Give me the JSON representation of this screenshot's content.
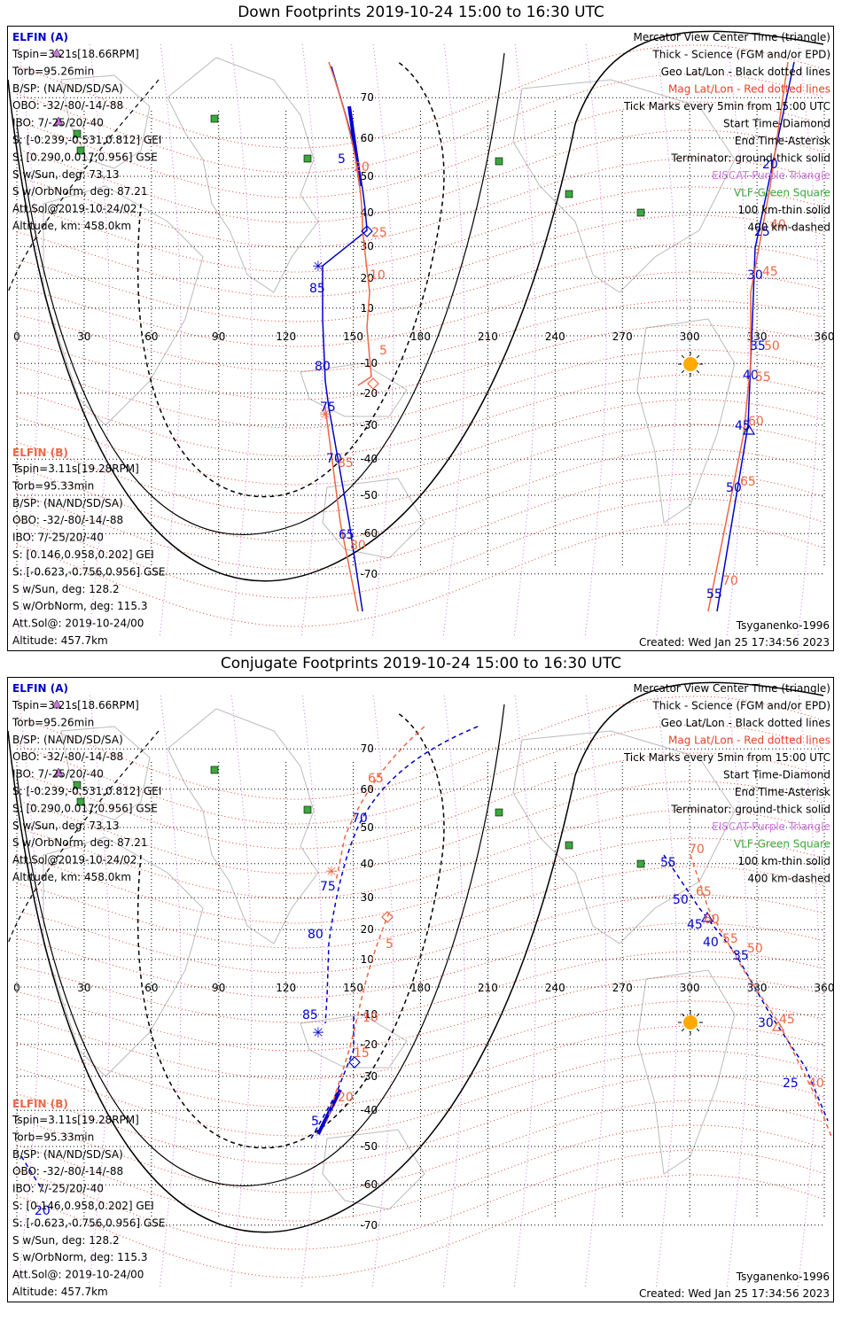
{
  "panels": [
    {
      "title": "Down Footprints 2019-10-24 15:00 to 16:30 UTC",
      "elfin_a": {
        "header": "ELFIN (A)",
        "lines": [
          "Tspin=3.21s[18.66RPM]",
          "Torb=95.26min",
          "B/SP: (NA/ND/SD/SA)",
          "OBO: -32/-80/-14/-88",
          "IBO: 7/-25/20/-40",
          "S: [-0.239,-0.531,0.812] GEI",
          "S: [0.290,0.017,0.956] GSE",
          "S w/Sun, deg: 73.13",
          "S w/OrbNorm, deg: 87.21",
          "Att.Sol@2019-10-24/02",
          "Altitude, km: 458.0km"
        ]
      },
      "elfin_b": {
        "header": "ELFIN (B)",
        "lines": [
          "Tspin=3.11s[19.28RPM]",
          "Torb=95.33min",
          "B/SP: (NA/ND/SD/SA)",
          "OBO: -32/-80/-14/-88",
          "IBO: 7/-25/20/-40",
          "S: [0.146,0.958,0.202] GEI",
          "S: [-0.623,-0.756,0.956] GSE",
          "S w/Sun, deg: 128.2",
          "S w/OrbNorm, deg: 115.3",
          "Att.Sol@: 2019-10-24/00",
          "Altitude: 457.7km"
        ]
      },
      "legend": [
        {
          "text": "Mercator View Center Time (triangle)",
          "color": "#000000"
        },
        {
          "text": "Thick - Science (FGM and/or EPD)",
          "color": "#000000"
        },
        {
          "text": "Geo Lat/Lon - Black dotted lines",
          "color": "#000000"
        },
        {
          "text": "Mag Lat/Lon - Red dotted lines",
          "color": "#e8402a"
        },
        {
          "text": "Tick Marks every 5min from 15:00 UTC",
          "color": "#000000"
        },
        {
          "text": "Start Time-Diamond",
          "color": "#000000"
        },
        {
          "text": "End Time-Asterisk",
          "color": "#000000"
        },
        {
          "text": "Terminator: ground-thick solid",
          "color": "#000000"
        },
        {
          "text": "EISCAT-Purple Triangle",
          "color": "#cc77dd"
        },
        {
          "text": "VLF-Green Square",
          "color": "#3aa83a"
        },
        {
          "text": "100 km-thin solid",
          "color": "#000000"
        },
        {
          "text": "400 km-dashed",
          "color": "#000000"
        }
      ],
      "model": "Tsyganenko-1996",
      "created": "Created: Wed Jan 25 17:34:56 2023",
      "track_a_labels": [
        "5",
        "85",
        "80",
        "75",
        "70",
        "65",
        "20",
        "25",
        "30",
        "35",
        "40",
        "45",
        "50",
        "55"
      ],
      "track_b_labels": [
        "20",
        "25",
        "10",
        "5",
        "85",
        "80",
        "40",
        "45",
        "50",
        "55",
        "60",
        "65",
        "70"
      ]
    },
    {
      "title": "Conjugate Footprints 2019-10-24 15:00 to 16:30 UTC",
      "elfin_a": {
        "header": "ELFIN (A)",
        "lines": [
          "Tspin=3.21s[18.66RPM]",
          "Torb=95.26min",
          "B/SP: (NA/ND/SD/SA)",
          "OBO: -32/-80/-14/-88",
          "IBO: 7/-25/20/-40",
          "S: [-0.239,-0.531,0.812] GEI",
          "S: [0.290,0.017,0.956] GSE",
          "S w/Sun, deg: 73.13",
          "S w/OrbNorm, deg: 87.21",
          "Att.Sol@2019-10-24/02",
          "Altitude, km: 458.0km"
        ]
      },
      "elfin_b": {
        "header": "ELFIN (B)",
        "lines": [
          "Tspin=3.11s[19.28RPM]",
          "Torb=95.33min",
          "B/SP: (NA/ND/SD/SA)",
          "OBO: -32/-80/-14/-88",
          "IBO: 7/-25/20/-40",
          "S: [0.146,0.958,0.202] GEI",
          "S: [-0.623,-0.756,0.956] GSE",
          "S w/Sun, deg: 128.2",
          "S w/OrbNorm, deg: 115.3",
          "Att.Sol@: 2019-10-24/00",
          "Altitude: 457.7km"
        ]
      },
      "legend": [
        {
          "text": "Mercator View Center Time (triangle)",
          "color": "#000000"
        },
        {
          "text": "Thick - Science (FGM and/or EPD)",
          "color": "#000000"
        },
        {
          "text": "Geo Lat/Lon - Black dotted lines",
          "color": "#000000"
        },
        {
          "text": "Mag Lat/Lon - Red dotted lines",
          "color": "#e8402a"
        },
        {
          "text": "Tick Marks every 5min from 15:00 UTC",
          "color": "#000000"
        },
        {
          "text": "Start Time-Diamond",
          "color": "#000000"
        },
        {
          "text": "End Time-Asterisk",
          "color": "#000000"
        },
        {
          "text": "Terminator: ground-thick solid",
          "color": "#000000"
        },
        {
          "text": "EISCAT-Purple Triangle",
          "color": "#cc77dd"
        },
        {
          "text": "VLF-Green Square",
          "color": "#3aa83a"
        },
        {
          "text": "100 km-thin solid",
          "color": "#000000"
        },
        {
          "text": "400 km-dashed",
          "color": "#000000"
        }
      ],
      "model": "Tsyganenko-1996",
      "created": "Created: Wed Jan 25 17:34:56 2023",
      "track_a_labels": [
        "70",
        "75",
        "80",
        "85",
        "5",
        "55",
        "50",
        "45",
        "40",
        "35",
        "30",
        "25",
        "20"
      ],
      "track_b_labels": [
        "65",
        "5",
        "10",
        "15",
        "20",
        "70",
        "65",
        "60",
        "55",
        "50",
        "45",
        "40"
      ]
    }
  ],
  "axes": {
    "lon_ticks": [
      "0",
      "30",
      "60",
      "90",
      "120",
      "150",
      "180",
      "210",
      "240",
      "270",
      "300",
      "330",
      "360"
    ],
    "lat_ticks_north": [
      "70",
      "60",
      "50",
      "40",
      "30",
      "20",
      "10"
    ],
    "lat_ticks_south": [
      "-10",
      "-20",
      "-30",
      "-40",
      "-50",
      "-60",
      "-70"
    ]
  },
  "colors": {
    "elfin_a": "#0000cc",
    "elfin_b": "#ee6644",
    "mag_grid": "#e8402a",
    "eiscat": "#cc77dd",
    "vlf": "#3aa83a",
    "sun": "#ffaa00"
  }
}
